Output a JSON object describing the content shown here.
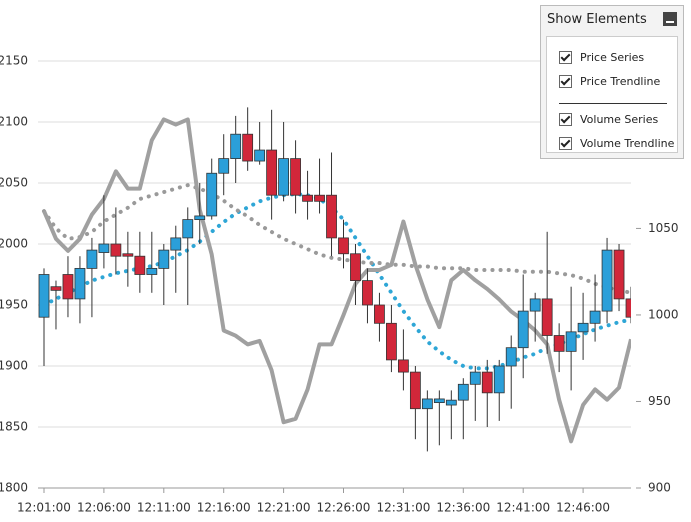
{
  "chart_data": {
    "type": "candlestick",
    "categories": [
      "12:01:00",
      null,
      null,
      null,
      null,
      "12:06:00",
      null,
      null,
      null,
      null,
      "12:11:00",
      null,
      null,
      null,
      null,
      "12:16:00",
      null,
      null,
      null,
      null,
      "12:21:00",
      null,
      null,
      null,
      null,
      "12:26:00",
      null,
      null,
      null,
      null,
      "12:31:00",
      null,
      null,
      null,
      null,
      "12:36:00",
      null,
      null,
      null,
      null,
      "12:41:00",
      null,
      null,
      null,
      null,
      "12:46:00",
      null,
      null,
      null,
      null
    ],
    "ylim": [
      1800,
      2200
    ],
    "yticks": [
      1800,
      1850,
      1900,
      1950,
      2000,
      2050,
      2100,
      2150
    ],
    "y2lim": [
      900,
      1182
    ],
    "y2ticks": [
      900,
      950,
      1000,
      1050
    ],
    "grid": true,
    "series": [
      {
        "name": "Price Series",
        "type": "candlestick",
        "visible": true,
        "up_color": "#2b9fd9",
        "down_color": "#d1273a",
        "open": [
          1940,
          1965,
          1975,
          1955,
          1980,
          1993,
          2000,
          1992,
          1990,
          1975,
          1980,
          1995,
          2005,
          2020,
          2023,
          2058,
          2070,
          2090,
          2068,
          2077,
          2040,
          2070,
          2040,
          2040,
          2040,
          2005,
          1992,
          1970,
          1950,
          1935,
          1905,
          1895,
          1865,
          1870,
          1868,
          1872,
          1885,
          1895,
          1878,
          1900,
          1915,
          1945,
          1955,
          1925,
          1912,
          1928,
          1935,
          1945,
          1995,
          1955
        ],
        "high": [
          1980,
          1970,
          1990,
          1990,
          2005,
          2040,
          2030,
          2010,
          2010,
          2010,
          2000,
          2015,
          2030,
          2050,
          2070,
          2090,
          2105,
          2112,
          2100,
          2110,
          2100,
          2085,
          2060,
          2070,
          2075,
          2020,
          2000,
          1980,
          1960,
          1950,
          1930,
          1900,
          1880,
          1880,
          1880,
          1890,
          1900,
          1905,
          1905,
          1925,
          1975,
          1960,
          2010,
          1935,
          1965,
          1960,
          1975,
          2005,
          2000,
          1965
        ],
        "low": [
          1900,
          1930,
          1940,
          1935,
          1940,
          1980,
          1975,
          1965,
          1960,
          1960,
          1950,
          1960,
          1950,
          2000,
          2020,
          2040,
          2050,
          2060,
          2065,
          2020,
          2035,
          2025,
          2020,
          2025,
          1990,
          1980,
          1950,
          1935,
          1920,
          1895,
          1880,
          1840,
          1830,
          1835,
          1840,
          1840,
          1855,
          1850,
          1855,
          1865,
          1890,
          1920,
          1910,
          1895,
          1880,
          1905,
          1920,
          1935,
          1945,
          1935
        ],
        "close": [
          1975,
          1962,
          1955,
          1980,
          1995,
          2000,
          1990,
          1990,
          1975,
          1980,
          1995,
          2005,
          2020,
          2023,
          2058,
          2070,
          2090,
          2068,
          2077,
          2040,
          2070,
          2040,
          2035,
          2035,
          2005,
          1992,
          1970,
          1950,
          1935,
          1905,
          1895,
          1865,
          1873,
          1873,
          1872,
          1885,
          1895,
          1878,
          1900,
          1915,
          1945,
          1955,
          1925,
          1912,
          1928,
          1935,
          1945,
          1995,
          1955,
          1940
        ]
      },
      {
        "name": "Price Trendline",
        "type": "line",
        "visible": true,
        "color": "#2ea6d6",
        "dotted": true,
        "values": [
          1950,
          1955,
          1960,
          1965,
          1970,
          1973,
          1976,
          1978,
          1980,
          1982,
          1985,
          1990,
          1995,
          2002,
          2010,
          2018,
          2025,
          2030,
          2035,
          2038,
          2040,
          2041,
          2040,
          2037,
          2030,
          2020,
          2005,
          1990,
          1975,
          1960,
          1945,
          1932,
          1920,
          1912,
          1905,
          1900,
          1898,
          1898,
          1900,
          1903,
          1907,
          1910,
          1915,
          1918,
          1922,
          1926,
          1930,
          1933,
          1936,
          1938
        ]
      },
      {
        "name": "Volume Series",
        "type": "line",
        "visible": true,
        "color": "#a0a0a0",
        "dotted": false,
        "axis": "y2",
        "values": [
          1060,
          1044,
          1037,
          1044,
          1058,
          1067,
          1083,
          1073,
          1073,
          1101,
          1113,
          1110,
          1113,
          1061,
          1035,
          991,
          988,
          983,
          985,
          968,
          938,
          940,
          957,
          983,
          983,
          1000,
          1018,
          1026,
          1026,
          1029,
          1054,
          1029,
          1009,
          993,
          1020,
          1026,
          1020,
          1015,
          1009,
          1002,
          997,
          991,
          983,
          951,
          927,
          948,
          957,
          951,
          958,
          986
        ]
      },
      {
        "name": "Volume Trendline",
        "type": "line",
        "visible": true,
        "color": "#9a9a9a",
        "dotted": true,
        "axis": "y2",
        "values": [
          1060,
          1050,
          1044,
          1045,
          1048,
          1054,
          1058,
          1062,
          1067,
          1069,
          1071,
          1073,
          1075,
          1073,
          1070,
          1066,
          1061,
          1057,
          1052,
          1048,
          1044,
          1041,
          1038,
          1035,
          1033,
          1032,
          1031,
          1030,
          1030,
          1029,
          1029,
          1028,
          1028,
          1027,
          1027,
          1027,
          1026,
          1026,
          1026,
          1026,
          1025,
          1025,
          1025,
          1024,
          1023,
          1021,
          1018,
          1016,
          1014,
          1013
        ]
      }
    ]
  },
  "panel": {
    "title": "Show Elements"
  }
}
